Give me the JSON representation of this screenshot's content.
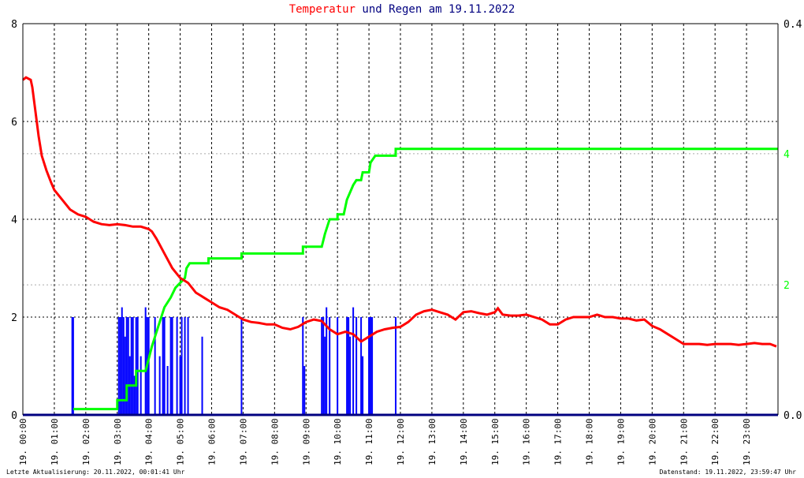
{
  "title": {
    "part1": "Temperatur",
    "part2": " und ",
    "part3": "Regen",
    "part4": " am 19.11.2022"
  },
  "footer": {
    "left": "Letzte Aktualisierung: 20.11.2022, 00:01:41 Uhr",
    "right": "Datenstand: 19.11.2022, 23:59:47 Uhr"
  },
  "colors": {
    "temperature": "#ff0000",
    "rain_total": "#00ff00",
    "rain_rate": "#0000ff",
    "title_blue": "#000080",
    "grid": "#000000"
  },
  "chart_data": {
    "type": "line",
    "x_unit": "hours",
    "xlim": [
      0,
      24
    ],
    "x_tick_labels": [
      "19. 00:00",
      "19. 01:00",
      "19. 02:00",
      "19. 03:00",
      "19. 04:00",
      "19. 05:00",
      "19. 06:00",
      "19. 07:00",
      "19. 08:00",
      "19. 09:00",
      "19. 10:00",
      "19. 11:00",
      "19. 12:00",
      "19. 13:00",
      "19. 14:00",
      "19. 15:00",
      "19. 16:00",
      "19. 17:00",
      "19. 18:00",
      "19. 19:00",
      "19. 20:00",
      "19. 21:00",
      "19. 22:00",
      "19. 23:00"
    ],
    "y_left": {
      "ylim": [
        0,
        8
      ],
      "ticks": [
        "0",
        "2",
        "4",
        "6",
        "8"
      ]
    },
    "y_right": {
      "ylim": [
        0,
        0.4
      ],
      "ticks": [
        "0.0",
        "2",
        "4",
        "0.4"
      ],
      "tick_values": [
        0,
        0.133,
        0.267,
        0.4
      ]
    },
    "grid": true,
    "series": [
      {
        "key": "temperature",
        "axis": "left",
        "points": [
          [
            0,
            6.85
          ],
          [
            0.1,
            6.9
          ],
          [
            0.25,
            6.85
          ],
          [
            0.3,
            6.7
          ],
          [
            0.4,
            6.2
          ],
          [
            0.5,
            5.7
          ],
          [
            0.6,
            5.3
          ],
          [
            0.75,
            5.0
          ],
          [
            0.9,
            4.75
          ],
          [
            1.0,
            4.6
          ],
          [
            1.25,
            4.4
          ],
          [
            1.5,
            4.2
          ],
          [
            1.75,
            4.1
          ],
          [
            2.0,
            4.05
          ],
          [
            2.25,
            3.95
          ],
          [
            2.5,
            3.9
          ],
          [
            2.75,
            3.88
          ],
          [
            3.0,
            3.9
          ],
          [
            3.25,
            3.88
          ],
          [
            3.5,
            3.85
          ],
          [
            3.75,
            3.85
          ],
          [
            4.0,
            3.8
          ],
          [
            4.1,
            3.75
          ],
          [
            4.25,
            3.6
          ],
          [
            4.5,
            3.3
          ],
          [
            4.75,
            3.0
          ],
          [
            5.0,
            2.8
          ],
          [
            5.25,
            2.7
          ],
          [
            5.5,
            2.5
          ],
          [
            5.75,
            2.4
          ],
          [
            6.0,
            2.3
          ],
          [
            6.25,
            2.2
          ],
          [
            6.5,
            2.15
          ],
          [
            6.75,
            2.05
          ],
          [
            7.0,
            1.95
          ],
          [
            7.25,
            1.9
          ],
          [
            7.5,
            1.88
          ],
          [
            7.75,
            1.85
          ],
          [
            8.0,
            1.85
          ],
          [
            8.25,
            1.78
          ],
          [
            8.5,
            1.75
          ],
          [
            8.75,
            1.8
          ],
          [
            9.0,
            1.9
          ],
          [
            9.25,
            1.95
          ],
          [
            9.5,
            1.92
          ],
          [
            9.75,
            1.75
          ],
          [
            10.0,
            1.65
          ],
          [
            10.25,
            1.7
          ],
          [
            10.5,
            1.65
          ],
          [
            10.75,
            1.5
          ],
          [
            11.0,
            1.6
          ],
          [
            11.25,
            1.7
          ],
          [
            11.5,
            1.75
          ],
          [
            11.75,
            1.78
          ],
          [
            12.0,
            1.8
          ],
          [
            12.25,
            1.9
          ],
          [
            12.5,
            2.05
          ],
          [
            12.75,
            2.12
          ],
          [
            13.0,
            2.15
          ],
          [
            13.25,
            2.1
          ],
          [
            13.5,
            2.05
          ],
          [
            13.75,
            1.95
          ],
          [
            14.0,
            2.1
          ],
          [
            14.25,
            2.12
          ],
          [
            14.5,
            2.08
          ],
          [
            14.75,
            2.05
          ],
          [
            15.0,
            2.1
          ],
          [
            15.1,
            2.18
          ],
          [
            15.25,
            2.05
          ],
          [
            15.5,
            2.03
          ],
          [
            15.75,
            2.03
          ],
          [
            16.0,
            2.05
          ],
          [
            16.25,
            2.0
          ],
          [
            16.5,
            1.95
          ],
          [
            16.75,
            1.85
          ],
          [
            17.0,
            1.85
          ],
          [
            17.25,
            1.95
          ],
          [
            17.5,
            2.0
          ],
          [
            17.75,
            2.0
          ],
          [
            18.0,
            2.0
          ],
          [
            18.25,
            2.05
          ],
          [
            18.5,
            2.0
          ],
          [
            18.75,
            2.0
          ],
          [
            19.0,
            1.97
          ],
          [
            19.25,
            1.97
          ],
          [
            19.5,
            1.93
          ],
          [
            19.75,
            1.95
          ],
          [
            20.0,
            1.82
          ],
          [
            20.25,
            1.75
          ],
          [
            20.5,
            1.65
          ],
          [
            20.75,
            1.55
          ],
          [
            21.0,
            1.45
          ],
          [
            21.25,
            1.45
          ],
          [
            21.5,
            1.45
          ],
          [
            21.75,
            1.43
          ],
          [
            22.0,
            1.45
          ],
          [
            22.25,
            1.45
          ],
          [
            22.5,
            1.45
          ],
          [
            22.75,
            1.43
          ],
          [
            23.0,
            1.45
          ],
          [
            23.25,
            1.47
          ],
          [
            23.5,
            1.45
          ],
          [
            23.75,
            1.45
          ],
          [
            23.95,
            1.4
          ]
        ]
      },
      {
        "key": "rain_total",
        "axis": "right",
        "points": [
          [
            1.6,
            0.006
          ],
          [
            3.0,
            0.006
          ],
          [
            3.0,
            0.015
          ],
          [
            3.3,
            0.015
          ],
          [
            3.3,
            0.03
          ],
          [
            3.6,
            0.03
          ],
          [
            3.6,
            0.045
          ],
          [
            3.9,
            0.045
          ],
          [
            4.1,
            0.07
          ],
          [
            4.3,
            0.09
          ],
          [
            4.5,
            0.11
          ],
          [
            4.7,
            0.12
          ],
          [
            4.85,
            0.13
          ],
          [
            5.0,
            0.135
          ],
          [
            5.15,
            0.14
          ],
          [
            5.2,
            0.15
          ],
          [
            5.3,
            0.155
          ],
          [
            5.9,
            0.155
          ],
          [
            5.9,
            0.16
          ],
          [
            6.95,
            0.16
          ],
          [
            6.95,
            0.165
          ],
          [
            8.9,
            0.165
          ],
          [
            8.9,
            0.172
          ],
          [
            9.5,
            0.172
          ],
          [
            9.6,
            0.185
          ],
          [
            9.75,
            0.2
          ],
          [
            10.0,
            0.2
          ],
          [
            10.0,
            0.205
          ],
          [
            10.2,
            0.205
          ],
          [
            10.3,
            0.22
          ],
          [
            10.5,
            0.235
          ],
          [
            10.6,
            0.24
          ],
          [
            10.75,
            0.24
          ],
          [
            10.8,
            0.248
          ],
          [
            11.0,
            0.248
          ],
          [
            11.05,
            0.258
          ],
          [
            11.2,
            0.265
          ],
          [
            11.85,
            0.265
          ],
          [
            11.85,
            0.272
          ],
          [
            24,
            0.272
          ]
        ]
      },
      {
        "key": "rain_rate",
        "axis": "right",
        "bars": [
          [
            1.57,
            0.1
          ],
          [
            1.6,
            0.1
          ],
          [
            3.05,
            0.1
          ],
          [
            3.1,
            0.1
          ],
          [
            3.15,
            0.11
          ],
          [
            3.2,
            0.1
          ],
          [
            3.25,
            0.08
          ],
          [
            3.3,
            0.1
          ],
          [
            3.35,
            0.1
          ],
          [
            3.4,
            0.06
          ],
          [
            3.45,
            0.1
          ],
          [
            3.5,
            0.1
          ],
          [
            3.55,
            0.04
          ],
          [
            3.6,
            0.1
          ],
          [
            3.65,
            0.1
          ],
          [
            3.75,
            0.06
          ],
          [
            3.9,
            0.11
          ],
          [
            3.95,
            0.1
          ],
          [
            4.0,
            0.1
          ],
          [
            4.2,
            0.1
          ],
          [
            4.35,
            0.06
          ],
          [
            4.45,
            0.1
          ],
          [
            4.5,
            0.1
          ],
          [
            4.6,
            0.05
          ],
          [
            4.7,
            0.1
          ],
          [
            4.75,
            0.1
          ],
          [
            4.9,
            0.1
          ],
          [
            5.0,
            0.06
          ],
          [
            5.05,
            0.1
          ],
          [
            5.15,
            0.1
          ],
          [
            5.25,
            0.1
          ],
          [
            5.7,
            0.08
          ],
          [
            6.95,
            0.1
          ],
          [
            8.9,
            0.1
          ],
          [
            8.95,
            0.05
          ],
          [
            9.5,
            0.1
          ],
          [
            9.55,
            0.1
          ],
          [
            9.6,
            0.08
          ],
          [
            9.65,
            0.11
          ],
          [
            9.75,
            0.1
          ],
          [
            10.0,
            0.1
          ],
          [
            10.3,
            0.1
          ],
          [
            10.35,
            0.1
          ],
          [
            10.4,
            0.08
          ],
          [
            10.5,
            0.11
          ],
          [
            10.6,
            0.1
          ],
          [
            10.75,
            0.1
          ],
          [
            10.8,
            0.06
          ],
          [
            11.0,
            0.1
          ],
          [
            11.05,
            0.1
          ],
          [
            11.1,
            0.1
          ],
          [
            11.85,
            0.1
          ]
        ]
      }
    ]
  }
}
